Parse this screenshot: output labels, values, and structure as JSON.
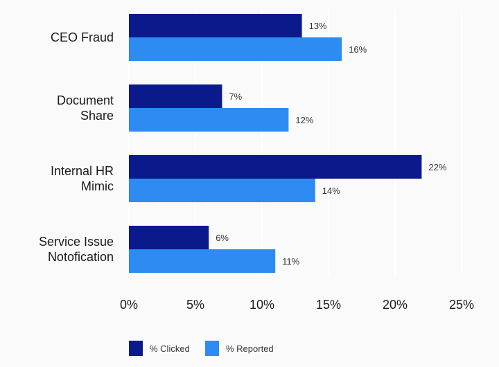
{
  "chart_data": {
    "type": "bar",
    "orientation": "horizontal",
    "categories": [
      [
        "CEO Fraud"
      ],
      [
        "Document",
        "Share"
      ],
      [
        "Internal HR",
        "Mimic"
      ],
      [
        "Service Issue",
        "Notofication"
      ]
    ],
    "series": [
      {
        "name": "% Clicked",
        "color": "#0a1a8a",
        "values": [
          13,
          7,
          22,
          6
        ],
        "labels": [
          "13%",
          "7%",
          "22%",
          "6%"
        ]
      },
      {
        "name": "% Reported",
        "color": "#2e8bf2",
        "values": [
          16,
          12,
          14,
          11
        ],
        "labels": [
          "16%",
          "12%",
          "14%",
          "11%"
        ]
      }
    ],
    "xlim": [
      0,
      25
    ],
    "xticks": [
      0,
      5,
      10,
      15,
      20,
      25
    ],
    "xtick_labels": [
      "0%",
      "5%",
      "10%",
      "15%",
      "20%",
      "25%"
    ],
    "grid": true,
    "legend_placement": "bottom-left",
    "title": "",
    "xlabel": "",
    "ylabel": ""
  }
}
